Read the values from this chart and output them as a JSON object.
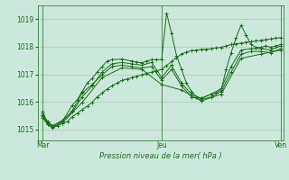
{
  "bg_color": "#cce8dd",
  "plot_bg_color": "#cce8dd",
  "grid_color": "#b0c8b0",
  "line_color": "#1a6e1a",
  "text_color": "#1a6e1a",
  "xlabel_text": "Pression niveau de la mer( hPa )",
  "x_tick_labels": [
    "Mar",
    "Jeu",
    "Ven"
  ],
  "x_tick_positions": [
    0,
    48,
    96
  ],
  "ylim": [
    1014.6,
    1019.5
  ],
  "xlim": [
    -2,
    97
  ],
  "yticks": [
    1015,
    1016,
    1017,
    1018,
    1019
  ],
  "series1_x": [
    0,
    2,
    4,
    6,
    8,
    10,
    12,
    14,
    16,
    18,
    20,
    22,
    24,
    26,
    28,
    30,
    32,
    34,
    36,
    38,
    40,
    42,
    44,
    46,
    48,
    50,
    52,
    54,
    56,
    58,
    60,
    62,
    64,
    66,
    68,
    70,
    72,
    74,
    76,
    78,
    80,
    82,
    84,
    86,
    88,
    90,
    92,
    94,
    96
  ],
  "series1_y": [
    1015.65,
    1015.22,
    1015.08,
    1015.13,
    1015.22,
    1015.28,
    1015.46,
    1015.58,
    1015.72,
    1015.84,
    1015.98,
    1016.18,
    1016.32,
    1016.46,
    1016.58,
    1016.68,
    1016.78,
    1016.83,
    1016.88,
    1016.93,
    1016.98,
    1017.03,
    1017.08,
    1017.13,
    1017.18,
    1017.32,
    1017.46,
    1017.6,
    1017.74,
    1017.8,
    1017.86,
    1017.88,
    1017.9,
    1017.91,
    1017.93,
    1017.96,
    1017.98,
    1018.03,
    1018.08,
    1018.11,
    1018.13,
    1018.16,
    1018.18,
    1018.21,
    1018.23,
    1018.26,
    1018.28,
    1018.31,
    1018.33
  ],
  "series2_x": [
    0,
    2,
    4,
    8,
    12,
    14,
    16,
    18,
    20,
    22,
    24,
    26,
    28,
    32,
    36,
    38,
    40,
    42,
    44,
    46,
    48,
    50,
    52,
    54,
    56,
    58,
    60,
    62,
    64,
    68,
    70,
    72,
    74,
    76,
    78,
    80,
    82,
    84,
    86,
    88,
    90,
    92,
    94,
    96
  ],
  "series2_y": [
    1015.58,
    1015.28,
    1015.12,
    1015.3,
    1015.88,
    1016.08,
    1016.38,
    1016.68,
    1016.85,
    1017.08,
    1017.28,
    1017.48,
    1017.53,
    1017.55,
    1017.48,
    1017.44,
    1017.42,
    1017.48,
    1017.53,
    1017.53,
    1017.53,
    1019.22,
    1018.48,
    1017.68,
    1017.18,
    1016.68,
    1016.38,
    1016.18,
    1016.13,
    1016.28,
    1016.33,
    1016.43,
    1017.18,
    1017.78,
    1018.33,
    1018.78,
    1018.43,
    1018.08,
    1017.98,
    1017.98,
    1018.03,
    1017.98,
    1018.03,
    1018.08
  ],
  "series3_x": [
    0,
    2,
    4,
    8,
    12,
    16,
    20,
    24,
    28,
    32,
    36,
    40,
    44,
    48,
    52,
    56,
    60,
    64,
    68,
    72,
    76,
    80,
    84,
    88,
    92,
    96
  ],
  "series3_y": [
    1015.52,
    1015.3,
    1015.13,
    1015.33,
    1015.63,
    1016.18,
    1016.58,
    1017.08,
    1017.38,
    1017.43,
    1017.38,
    1017.33,
    1017.43,
    1016.88,
    1017.33,
    1016.68,
    1016.28,
    1016.13,
    1016.28,
    1016.48,
    1017.28,
    1017.88,
    1017.93,
    1017.93,
    1017.88,
    1018.03
  ],
  "series4_x": [
    0,
    2,
    4,
    8,
    12,
    16,
    20,
    24,
    28,
    32,
    36,
    40,
    44,
    48,
    52,
    56,
    60,
    64,
    68,
    72,
    76,
    80,
    84,
    88,
    92,
    96
  ],
  "series4_y": [
    1015.48,
    1015.2,
    1015.08,
    1015.28,
    1015.68,
    1016.33,
    1016.63,
    1016.98,
    1017.28,
    1017.33,
    1017.28,
    1017.23,
    1017.28,
    1016.78,
    1017.18,
    1016.58,
    1016.18,
    1016.08,
    1016.18,
    1016.38,
    1017.08,
    1017.73,
    1017.83,
    1017.83,
    1017.78,
    1017.93
  ],
  "series5_x": [
    0,
    2,
    4,
    8,
    16,
    24,
    32,
    40,
    48,
    56,
    64,
    72,
    80,
    88,
    96
  ],
  "series5_y": [
    1015.43,
    1015.18,
    1015.05,
    1015.23,
    1015.98,
    1016.88,
    1017.23,
    1017.18,
    1016.63,
    1016.43,
    1016.03,
    1016.28,
    1017.58,
    1017.73,
    1017.88
  ]
}
